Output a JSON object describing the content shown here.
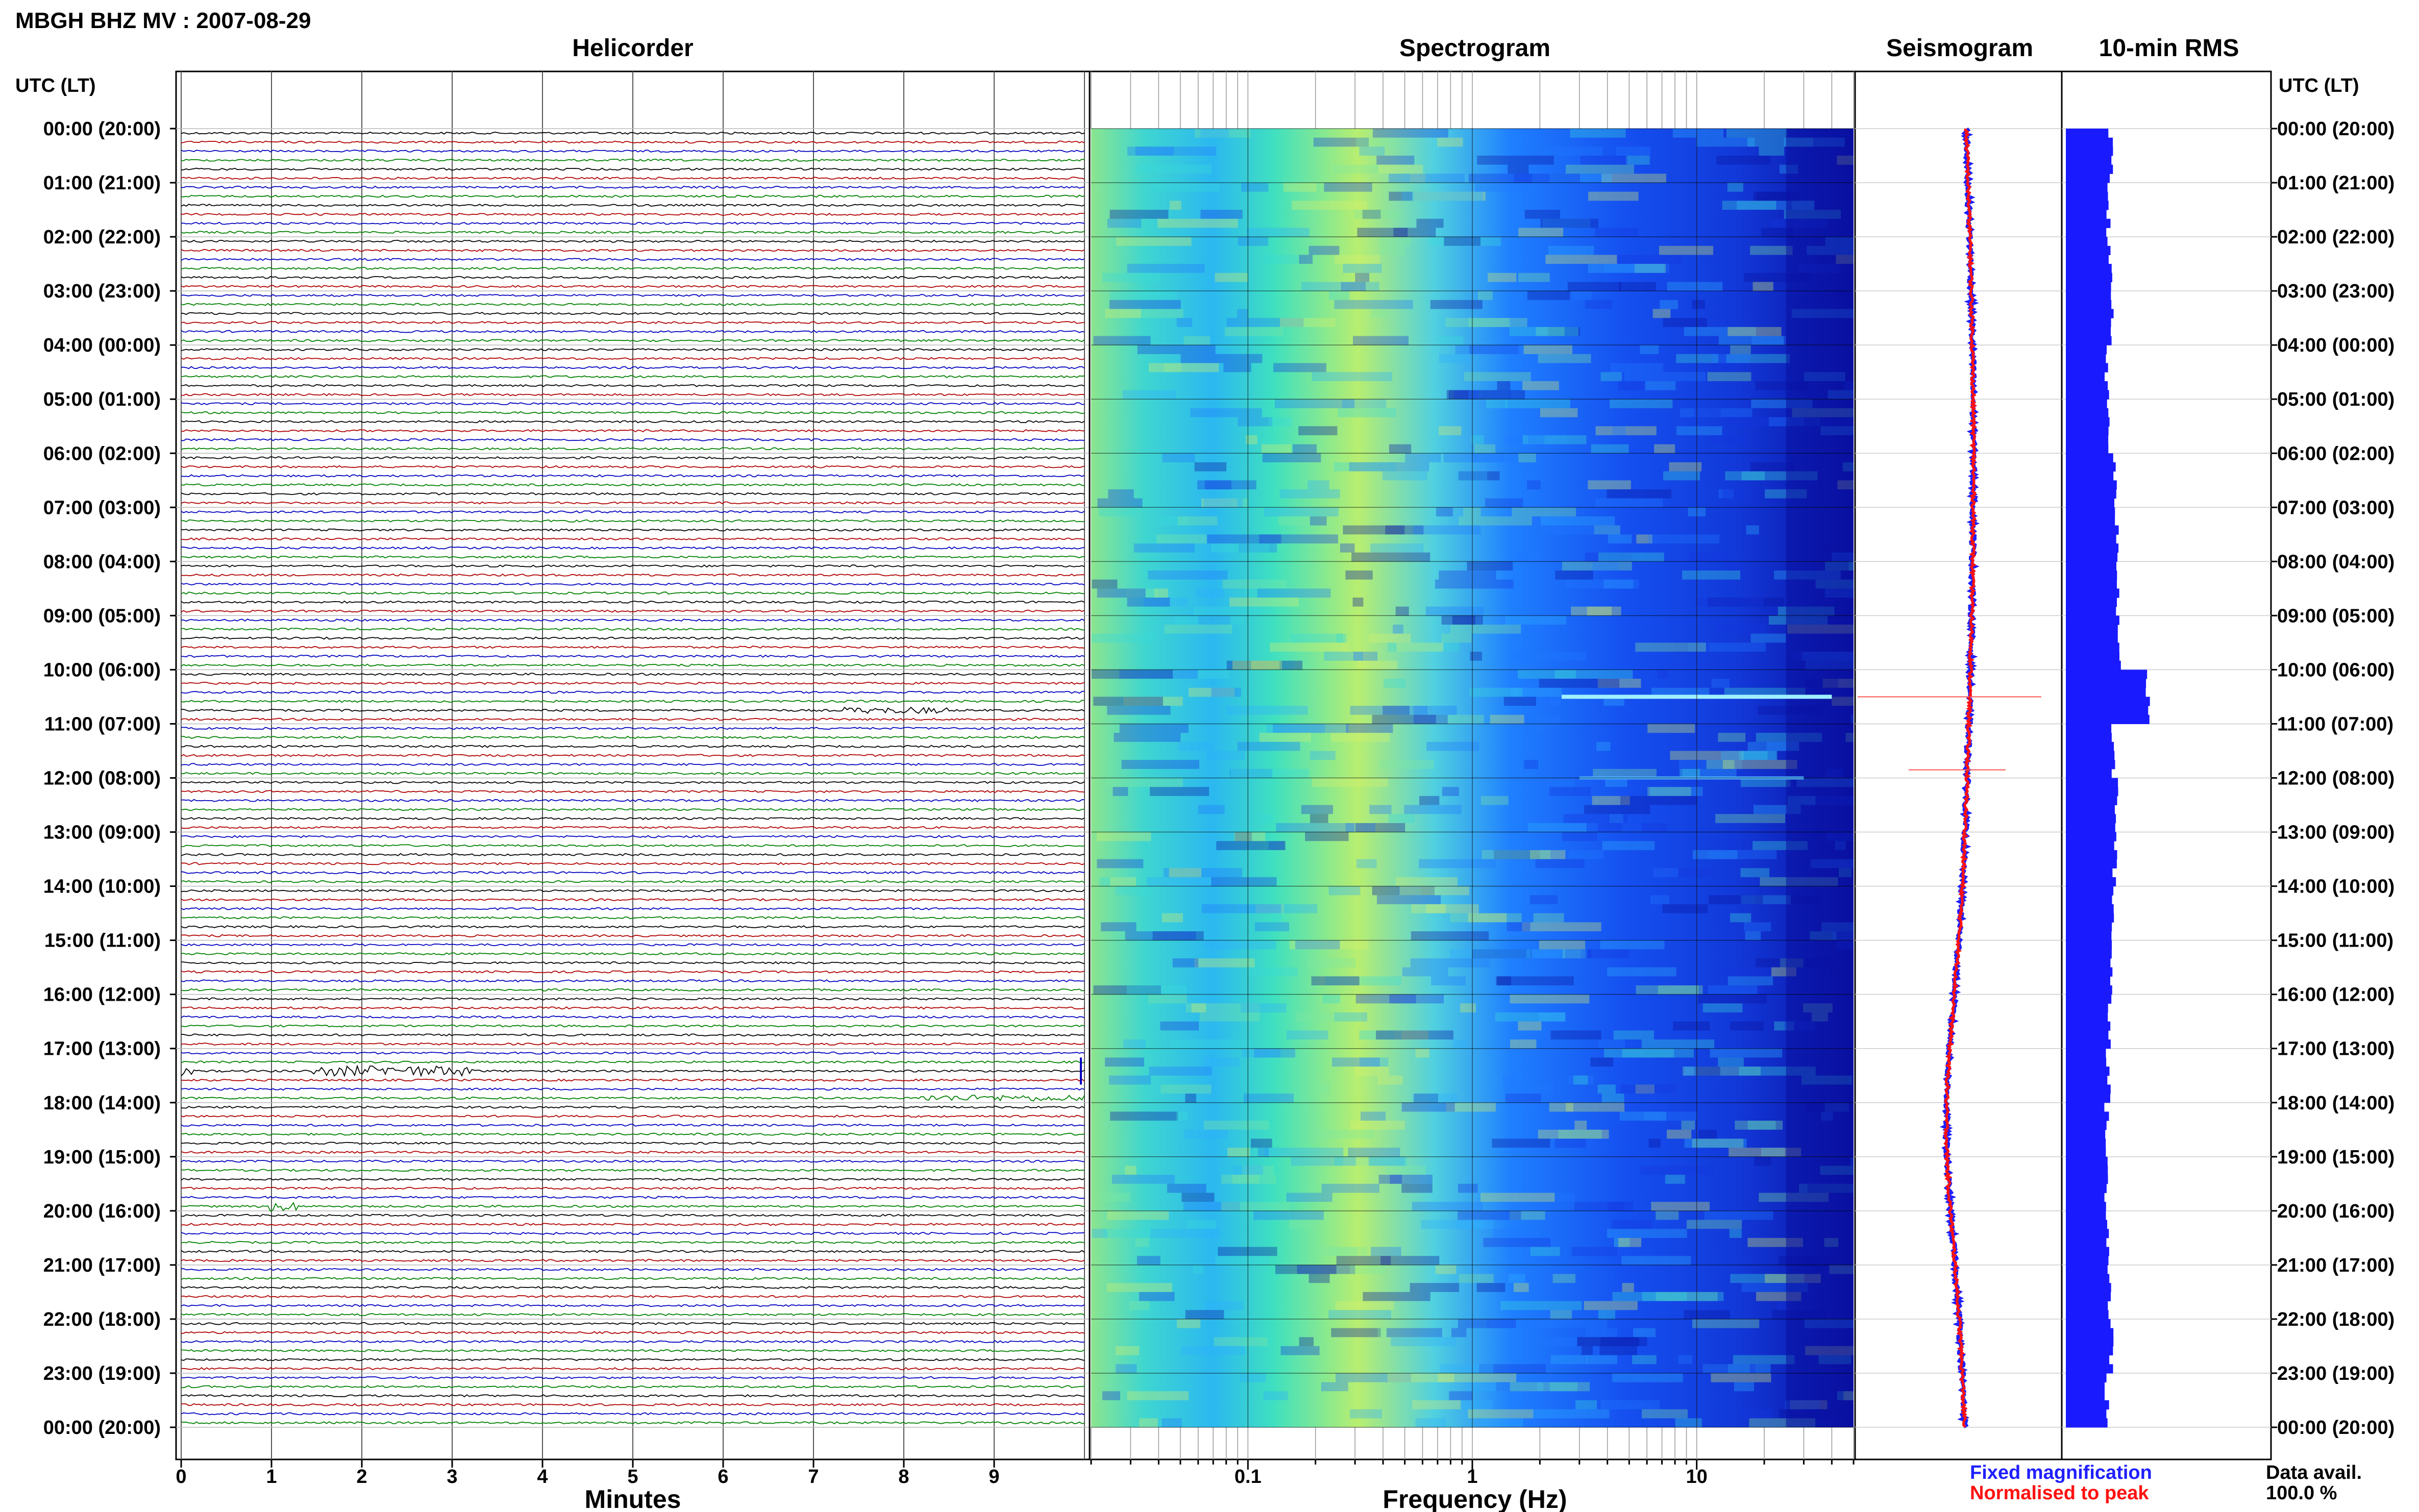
{
  "page": {
    "title": "MBGH BHZ MV : 2007-08-29"
  },
  "panels": {
    "helicorder": "Helicorder",
    "spectrogram": "Spectrogram",
    "seismogram": "Seismogram",
    "rms": "10-min RMS"
  },
  "axes": {
    "left_header": "UTC (LT)",
    "right_header": "UTC (LT)",
    "minutes_label": "Minutes",
    "frequency_label": "Frequency (Hz)"
  },
  "legend": {
    "fixed": "Fixed magnification",
    "normalised": "Normalised to peak",
    "fixed_color": "#1f1fff",
    "normalised_color": "#ff1111"
  },
  "data_avail": {
    "label": "Data avail.",
    "value": "100.0 %"
  },
  "chart_data": [
    {
      "type": "line",
      "panel": "Helicorder",
      "xlabel": "Minutes",
      "x_ticks": [
        "0",
        "1",
        "2",
        "3",
        "4",
        "5",
        "6",
        "7",
        "8",
        "9"
      ],
      "xlim": [
        0,
        10
      ],
      "rows_per_hour": 6,
      "hours": 24,
      "trace_colors": [
        "#000000",
        "#b00000",
        "#0000c0",
        "#008000"
      ],
      "y_tick_labels": [
        "00:00 (20:00)",
        "01:00 (21:00)",
        "02:00 (22:00)",
        "03:00 (23:00)",
        "04:00 (00:00)",
        "05:00 (01:00)",
        "06:00 (02:00)",
        "07:00 (03:00)",
        "08:00 (04:00)",
        "09:00 (05:00)",
        "10:00 (06:00)",
        "11:00 (07:00)",
        "12:00 (08:00)",
        "13:00 (09:00)",
        "14:00 (10:00)",
        "15:00 (11:00)",
        "16:00 (12:00)",
        "17:00 (13:00)",
        "18:00 (14:00)",
        "19:00 (15:00)",
        "20:00 (16:00)",
        "21:00 (17:00)",
        "22:00 (18:00)",
        "23:00 (19:00)",
        "00:00 (20:00)"
      ]
    },
    {
      "type": "heatmap",
      "panel": "Spectrogram",
      "xlabel": "Frequency (Hz)",
      "x_scale": "log",
      "x_ticks": [
        "0.1",
        "1",
        "10"
      ],
      "xlim": [
        0.02,
        50
      ],
      "colormap": [
        "#0a10a0",
        "#1437e0",
        "#1f77ff",
        "#2fb0ff",
        "#39d9d9",
        "#7fe8a0",
        "#d8f06a"
      ]
    },
    {
      "type": "line",
      "panel": "Seismogram",
      "series": [
        {
          "name": "Fixed magnification",
          "color": "#1f1fff"
        },
        {
          "name": "Normalised to peak",
          "color": "#ff1111"
        }
      ]
    },
    {
      "type": "bar",
      "panel": "10-min RMS",
      "color": "#1a1aff",
      "relative_hourly_rms": [
        0.55,
        0.52,
        0.54,
        0.56,
        0.5,
        0.52,
        0.6,
        0.62,
        0.64,
        0.66,
        1.0,
        0.58,
        0.62,
        0.6,
        0.58,
        0.56,
        0.54,
        0.52,
        0.5,
        0.5,
        0.52,
        0.54,
        0.56,
        0.5
      ]
    }
  ]
}
